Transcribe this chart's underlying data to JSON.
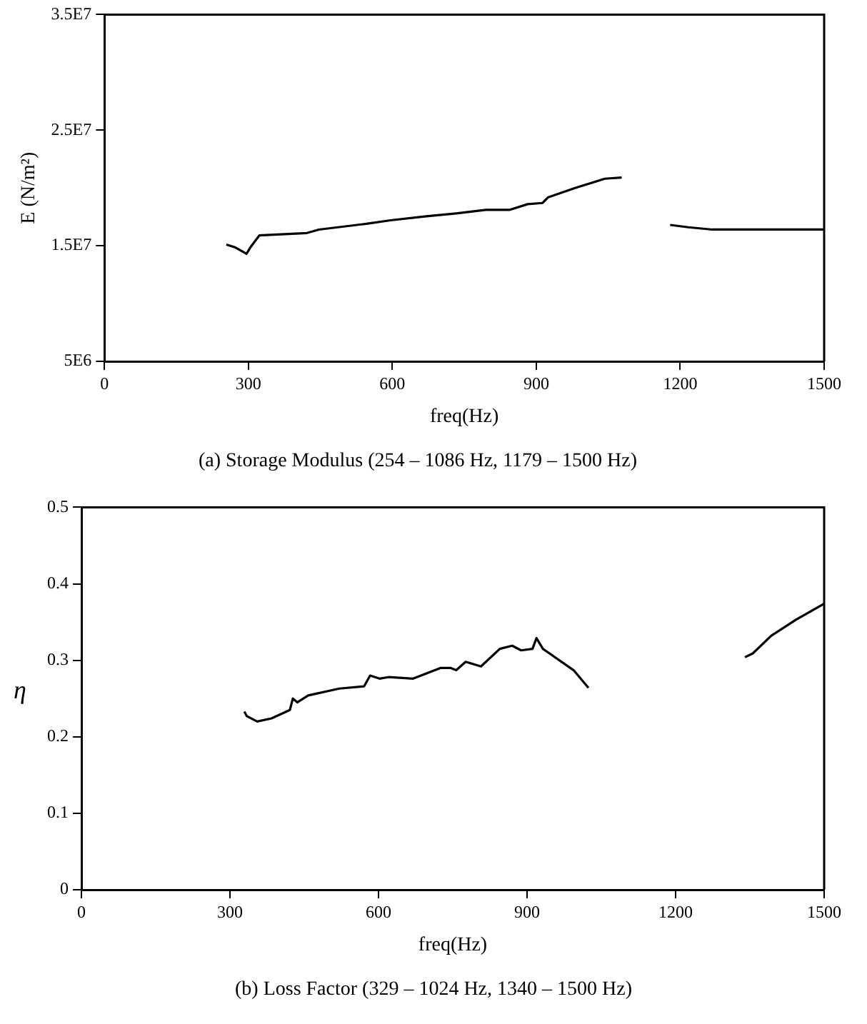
{
  "chart_data": [
    {
      "type": "line",
      "title": "(a) Storage Modulus (254 – 1086 Hz, 1179 – 1500 Hz)",
      "xlabel": "freq(Hz)",
      "ylabel": "E (N/m²)",
      "xlim": [
        0,
        1500
      ],
      "xticks": [
        0,
        300,
        600,
        900,
        1200,
        1500
      ],
      "ylim": [
        5000000,
        35000000
      ],
      "yticks": [
        {
          "value": 5000000,
          "label": "5E6"
        },
        {
          "value": 15000000,
          "label": "1.5E7"
        },
        {
          "value": 25000000,
          "label": "2.5E7"
        },
        {
          "value": 35000000,
          "label": "3.5E7"
        }
      ],
      "grid": false,
      "legend": false,
      "marker": "none",
      "line_style": "solid",
      "series": [
        {
          "color": "#000000",
          "x": [
            254,
            273,
            296,
            304,
            323,
            422,
            447,
            546,
            596,
            671,
            733,
            795,
            844,
            882,
            913,
            925,
            981,
            1043,
            1078
          ],
          "values": [
            15100000,
            14850000,
            14300000,
            14850000,
            15900000,
            16100000,
            16400000,
            16900000,
            17200000,
            17550000,
            17800000,
            18100000,
            18100000,
            18600000,
            18700000,
            19200000,
            20000000,
            20800000,
            20900000
          ]
        },
        {
          "color": "#000000",
          "x": [
            1179,
            1217,
            1267,
            1500
          ],
          "values": [
            16800000,
            16600000,
            16400000,
            16400000
          ]
        }
      ]
    },
    {
      "type": "line",
      "title": "(b) Loss Factor (329 – 1024 Hz, 1340 – 1500 Hz)",
      "xlabel": "freq(Hz)",
      "ylabel": "η",
      "xlim": [
        0,
        1500
      ],
      "xticks": [
        0,
        300,
        600,
        900,
        1200,
        1500
      ],
      "ylim": [
        0,
        0.5
      ],
      "yticks": [
        0,
        0.1,
        0.2,
        0.3,
        0.4,
        0.5
      ],
      "grid": false,
      "legend": false,
      "marker": "none",
      "line_style": "solid",
      "series": [
        {
          "color": "#000000",
          "x": [
            329,
            334,
            355,
            384,
            421,
            427,
            436,
            458,
            521,
            571,
            583,
            602,
            620,
            670,
            726,
            745,
            757,
            776,
            807,
            845,
            870,
            888,
            911,
            919,
            932,
            994,
            1024
          ],
          "values": [
            0.233,
            0.227,
            0.22,
            0.224,
            0.235,
            0.25,
            0.245,
            0.254,
            0.263,
            0.266,
            0.28,
            0.276,
            0.278,
            0.276,
            0.29,
            0.29,
            0.287,
            0.298,
            0.292,
            0.315,
            0.319,
            0.313,
            0.315,
            0.329,
            0.315,
            0.287,
            0.264
          ]
        },
        {
          "color": "#000000",
          "x": [
            1340,
            1356,
            1393,
            1443,
            1500
          ],
          "values": [
            0.304,
            0.309,
            0.332,
            0.353,
            0.374
          ]
        }
      ]
    }
  ]
}
